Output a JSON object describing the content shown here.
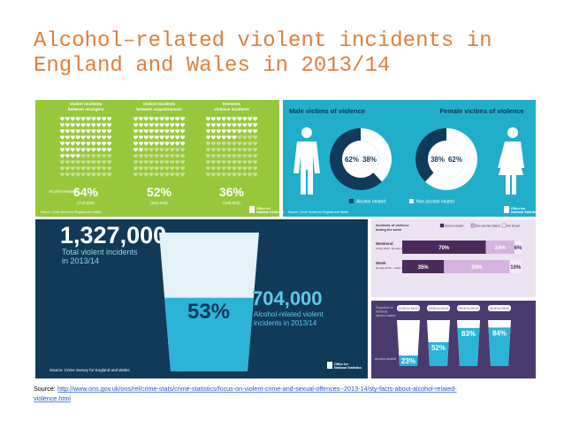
{
  "title_lines": [
    "Alcohol–related violent incidents in",
    "England and Wales in 2013/14"
  ],
  "relationship_panel": {
    "columns": [
      {
        "heading": [
          "Violent incidents",
          "between strangers"
        ],
        "share": {
          "value": 64,
          "label": "64%"
        },
        "count": "(713,000)"
      },
      {
        "heading": [
          "Violent incidents",
          "between acquaintances"
        ],
        "share": {
          "value": 52,
          "label": "52%"
        },
        "count": "(251,000)"
      },
      {
        "heading": [
          "Domestic",
          "violence incidents"
        ],
        "share": {
          "value": 36,
          "label": "36%"
        },
        "count": "(106,000)"
      }
    ],
    "row_label": "Alcohol-related",
    "source": "Source: Crime Survey for England and Wales",
    "logo": [
      "Office for",
      "National Statistics"
    ]
  },
  "victims_panel": {
    "groups": [
      {
        "heading": "Male victims of violence",
        "alcohol": {
          "value": 62,
          "label": "62%"
        },
        "non_alcohol": {
          "value": 38,
          "label": "38%"
        }
      },
      {
        "heading": "Female victims of violence",
        "alcohol": {
          "value": 38,
          "label": "38%"
        },
        "non_alcohol": {
          "value": 62,
          "label": "62%"
        }
      }
    ],
    "legend": [
      "Alcohol related",
      "Non alcohol related"
    ],
    "source": "Source: Crime Survey for England and Wales",
    "logo": [
      "Office for",
      "National Statistics"
    ]
  },
  "total_panel": {
    "total": "1,327,000",
    "total_caption": [
      "Total violent incidents",
      "in 2013/14"
    ],
    "share": {
      "value": 53,
      "label": "53%"
    },
    "alcohol_total": "704,000",
    "alcohol_caption": [
      "Alcohol-related violent",
      "incidents in 2013/14"
    ],
    "source": "Source: Crime Survey for England and Wales",
    "logo": [
      "Office for",
      "National Statistics"
    ]
  },
  "week_panel": {
    "title": [
      "Incidents of violence",
      "during the week"
    ],
    "legend": [
      "Alcohol-related",
      "Non-alcohol related",
      "Not known"
    ],
    "rows": [
      {
        "label": "Weekend",
        "sublabel": "Friday 18:00 - Monday 06:00",
        "segments": [
          {
            "value": 70,
            "label": "70%"
          },
          {
            "value": 24,
            "label": "24%"
          },
          {
            "value": 6,
            "label": "6%"
          }
        ]
      },
      {
        "label": "Week",
        "sublabel": "Monday 06:00 - Friday 18:00",
        "segments": [
          {
            "value": 35,
            "label": "35%"
          },
          {
            "value": 55,
            "label": "55%"
          },
          {
            "value": 10,
            "label": "10%"
          }
        ]
      }
    ]
  },
  "time_panel": {
    "title": [
      "Proportion of",
      "incidents",
      "alcohol-related"
    ],
    "row_label": "Alcohol-related",
    "cups": [
      {
        "time": "12:00 to 18:00",
        "share": {
          "value": 23,
          "label": "23%"
        }
      },
      {
        "time": "18:00 to 24:00",
        "share": {
          "value": 52,
          "label": "52%"
        }
      },
      {
        "time": "00:00 to 03:00",
        "share": {
          "value": 83,
          "label": "83%"
        }
      },
      {
        "time": "03:00 to 06:00",
        "share": {
          "value": 84,
          "label": "84%"
        }
      }
    ]
  },
  "source": {
    "label": "Source:",
    "url_lines": [
      "http://www.ons.gov.uk/ons/rel/crime-stats/crime-statistics/focus-on-violent-crime-and-sexual-offences--2013-14/sty-facts-about-alcohol-related-",
      "violence.html"
    ]
  }
}
